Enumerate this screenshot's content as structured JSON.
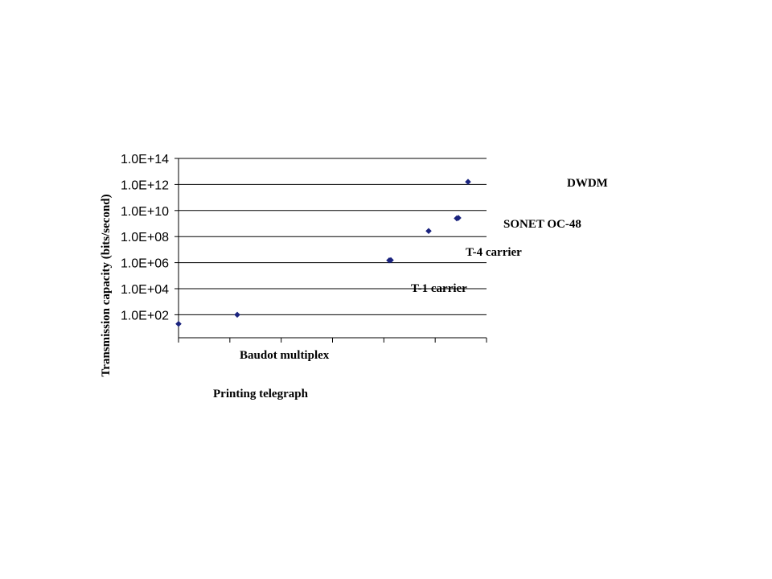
{
  "chart_data": {
    "type": "scatter",
    "ylabel": "Transmission capacity (bits/second)",
    "yscale": "log10",
    "ylim": [
      1,
      100000000000000.0
    ],
    "y_ticks": [
      "1.0E+14",
      "1.0E+12",
      "1.0E+10",
      "1.0E+08",
      "1.0E+06",
      "1.0E+04",
      "1.0E+02"
    ],
    "grid": true,
    "x_tick_count": 7,
    "marker_color": "#1a237e",
    "points": [
      {
        "y": 20
      },
      {
        "y": 100
      },
      {
        "y": 1500000
      },
      {
        "y": 1550000
      },
      {
        "y": 270000000
      },
      {
        "y": 2500000000
      },
      {
        "y": 2700000000
      },
      {
        "y": 1600000000000
      }
    ],
    "annotations": [
      {
        "text": "DWDM"
      },
      {
        "text": "SONET OC-48"
      },
      {
        "text": "T-4 carrier"
      },
      {
        "text": "T-1 carrier"
      },
      {
        "text": "Baudot multiplex"
      },
      {
        "text": "Printing telegraph"
      }
    ]
  }
}
